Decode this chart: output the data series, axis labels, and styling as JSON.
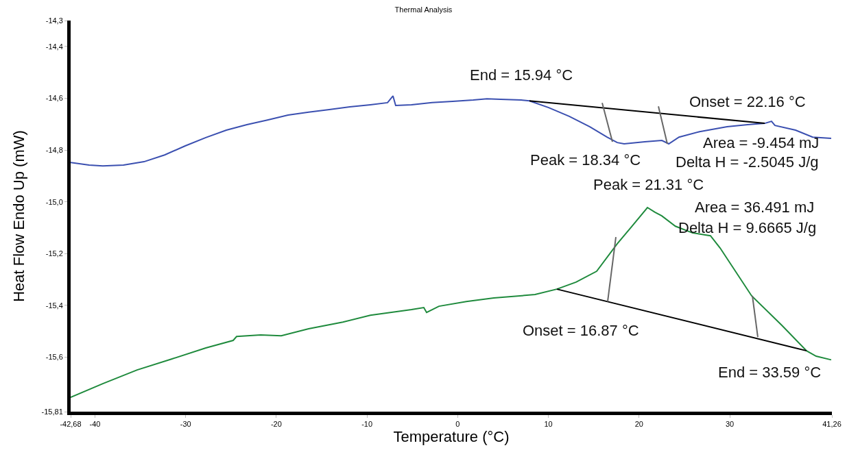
{
  "chart_data": {
    "type": "line",
    "title": "Thermal Analysis",
    "xlabel": "Temperature (°C)",
    "ylabel": "Heat Flow Endo Up (mW)",
    "xlim": [
      -42.68,
      41.26
    ],
    "ylim": [
      -15.81,
      -14.3
    ],
    "xticks": [
      {
        "value": -42.68,
        "label": "-42,68"
      },
      -40,
      -30,
      -20,
      -10,
      0,
      10,
      20,
      30,
      {
        "value": 41.26,
        "label": "41,26"
      }
    ],
    "yticks": [
      {
        "value": -14.3,
        "label": "-14,3"
      },
      {
        "value": -14.4,
        "label": "-14,4"
      },
      {
        "value": -14.6,
        "label": "-14,6"
      },
      {
        "value": -14.8,
        "label": "-14,8"
      },
      {
        "value": -15.0,
        "label": "-15,0"
      },
      {
        "value": -15.2,
        "label": "-15,2"
      },
      {
        "value": -15.4,
        "label": "-15,4"
      },
      {
        "value": -15.6,
        "label": "-15,6"
      },
      {
        "value": -15.81,
        "label": "-15,81"
      }
    ],
    "grid": false,
    "marker": "none",
    "line_style": "solid",
    "series": [
      {
        "color": "#3a4fb0",
        "x": [
          -42.68,
          -40.64,
          -39.13,
          -36.86,
          -34.59,
          -32.32,
          -30.05,
          -27.78,
          -25.51,
          -23.25,
          -20.98,
          -18.71,
          -16.44,
          -14.17,
          -11.9,
          -9.63,
          -7.74,
          -7.14,
          -6.84,
          -5.1,
          -2.83,
          -0.56,
          1.71,
          3.22,
          4.73,
          7.0,
          7.91,
          10.03,
          12.3,
          14.57,
          16.46,
          17.59,
          18.35,
          20.62,
          22.51,
          23.27,
          24.4,
          26.67,
          29.7,
          31.96,
          33.85,
          34.6,
          34.98,
          37.25,
          39.14,
          41.18
        ],
        "values": [
          -14.848,
          -14.858,
          -14.861,
          -14.858,
          -14.845,
          -14.819,
          -14.784,
          -14.752,
          -14.723,
          -14.702,
          -14.684,
          -14.665,
          -14.654,
          -14.644,
          -14.633,
          -14.625,
          -14.617,
          -14.591,
          -14.628,
          -14.625,
          -14.617,
          -14.612,
          -14.607,
          -14.602,
          -14.604,
          -14.607,
          -14.61,
          -14.636,
          -14.67,
          -14.71,
          -14.75,
          -14.771,
          -14.776,
          -14.768,
          -14.763,
          -14.776,
          -14.75,
          -14.729,
          -14.71,
          -14.702,
          -14.697,
          -14.689,
          -14.705,
          -14.723,
          -14.75,
          -14.755
        ]
      },
      {
        "color": "#1e8a3c",
        "x": [
          -42.68,
          -39.13,
          -35.35,
          -31.56,
          -27.78,
          -24.76,
          -24.38,
          -21.73,
          -19.46,
          -16.44,
          -12.66,
          -9.63,
          -5.1,
          -3.74,
          -3.43,
          -2.07,
          0.95,
          3.98,
          8.52,
          10.93,
          13.05,
          15.32,
          17.59,
          19.1,
          20.92,
          21.75,
          22.5,
          24.0,
          25.91,
          27.87,
          28.93,
          32.41,
          35.74,
          38.46,
          39.52,
          41.18
        ],
        "values": [
          -15.755,
          -15.702,
          -15.649,
          -15.607,
          -15.564,
          -15.535,
          -15.52,
          -15.514,
          -15.517,
          -15.49,
          -15.464,
          -15.438,
          -15.416,
          -15.408,
          -15.427,
          -15.403,
          -15.385,
          -15.371,
          -15.358,
          -15.337,
          -15.31,
          -15.268,
          -15.162,
          -15.099,
          -15.022,
          -15.04,
          -15.054,
          -15.094,
          -15.12,
          -15.131,
          -15.178,
          -15.363,
          -15.477,
          -15.575,
          -15.596,
          -15.61
        ]
      },
      {
        "color": "#000000",
        "x": [
          7.91,
          33.85
        ],
        "values": [
          -14.61,
          -14.697
        ]
      },
      {
        "color": "#000000",
        "x": [
          10.93,
          38.46
        ],
        "values": [
          -15.337,
          -15.575
        ]
      },
      {
        "color": "#666666",
        "x": [
          15.93,
          17.06
        ],
        "values": [
          -14.618,
          -14.768
        ]
      },
      {
        "color": "#666666",
        "x": [
          22.13,
          23.11
        ],
        "values": [
          -14.631,
          -14.776
        ]
      },
      {
        "color": "#666666",
        "x": [
          17.44,
          16.53
        ],
        "values": [
          -15.136,
          -15.385
        ]
      },
      {
        "color": "#666666",
        "x": [
          32.49,
          33.09
        ],
        "values": [
          -15.363,
          -15.522
        ]
      }
    ],
    "annotations": [
      "End = 15.94 °C",
      "Onset = 22.16 °C",
      "Peak = 18.34 °C",
      "Area = -9.454 mJ",
      "Delta H = -2.5045 J/g",
      "Peak = 21.31 °C",
      "Area = 36.491 mJ",
      "Delta H = 9.6665 J/g",
      "Onset = 16.87 °C",
      "End = 33.59 °C"
    ]
  }
}
